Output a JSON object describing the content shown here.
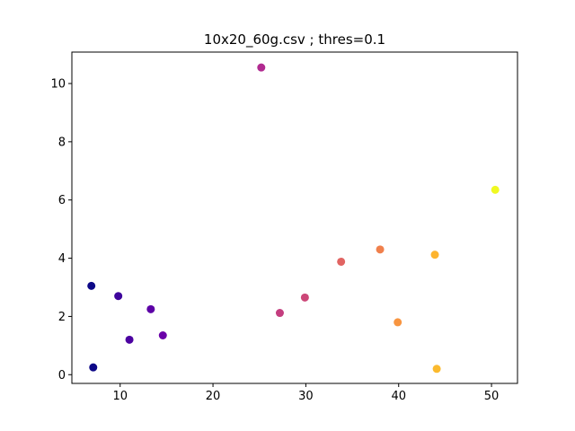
{
  "chart_data": {
    "type": "scatter",
    "title": "10x20_60g.csv ; thres=0.1",
    "xlabel": "",
    "ylabel": "",
    "xlim": [
      4.8,
      52.8
    ],
    "ylim": [
      -0.3,
      11.08
    ],
    "xticks": [
      10,
      20,
      30,
      40,
      50
    ],
    "yticks": [
      0,
      2,
      4,
      6,
      8,
      10
    ],
    "grid": false,
    "colormap": "plasma",
    "points": [
      {
        "x": 6.9,
        "y": 3.05,
        "color": "#0d0887"
      },
      {
        "x": 7.1,
        "y": 0.25,
        "color": "#0d0887"
      },
      {
        "x": 9.8,
        "y": 2.7,
        "color": "#3e049c"
      },
      {
        "x": 11.0,
        "y": 1.2,
        "color": "#4c02a1"
      },
      {
        "x": 13.3,
        "y": 2.25,
        "color": "#5c01a6"
      },
      {
        "x": 14.6,
        "y": 1.35,
        "color": "#6a00a8"
      },
      {
        "x": 25.2,
        "y": 10.55,
        "color": "#b12a90"
      },
      {
        "x": 27.2,
        "y": 2.12,
        "color": "#c43e7f"
      },
      {
        "x": 29.9,
        "y": 2.65,
        "color": "#cc4778"
      },
      {
        "x": 33.8,
        "y": 3.88,
        "color": "#e16462"
      },
      {
        "x": 38.0,
        "y": 4.3,
        "color": "#f0804c"
      },
      {
        "x": 39.9,
        "y": 1.8,
        "color": "#f89540"
      },
      {
        "x": 43.9,
        "y": 4.12,
        "color": "#fdb42f"
      },
      {
        "x": 44.1,
        "y": 0.2,
        "color": "#fbba2e"
      },
      {
        "x": 50.4,
        "y": 6.35,
        "color": "#f0f921"
      }
    ]
  }
}
